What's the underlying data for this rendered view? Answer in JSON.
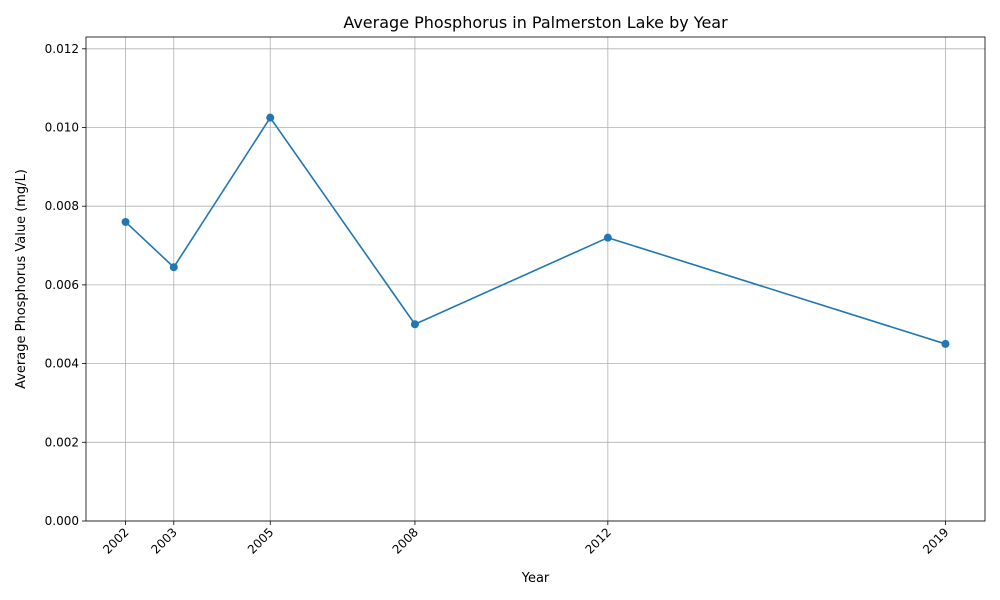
{
  "chart_data": {
    "type": "line",
    "title": "Average Phosphorus in Palmerston Lake by Year",
    "xlabel": "Year",
    "ylabel": "Average Phosphorus Value (mg/L)",
    "x": [
      2002,
      2003,
      2005,
      2008,
      2012,
      2019
    ],
    "x_tick_labels": [
      "2002",
      "2003",
      "2005",
      "2008",
      "2012",
      "2019"
    ],
    "series": [
      {
        "values": [
          0.0076,
          0.00645,
          0.01025,
          0.005,
          0.0072,
          0.0045
        ],
        "color": "#1f77b4",
        "marker": "circle"
      }
    ],
    "xlim": [
      2001.18,
      2019.82
    ],
    "ylim": [
      0,
      0.0123
    ],
    "y_ticks": [
      0.0,
      0.002,
      0.004,
      0.006,
      0.008,
      0.01,
      0.012
    ],
    "y_tick_labels": [
      "0.000",
      "0.002",
      "0.004",
      "0.006",
      "0.008",
      "0.010",
      "0.012"
    ],
    "grid": true,
    "legend": false
  }
}
